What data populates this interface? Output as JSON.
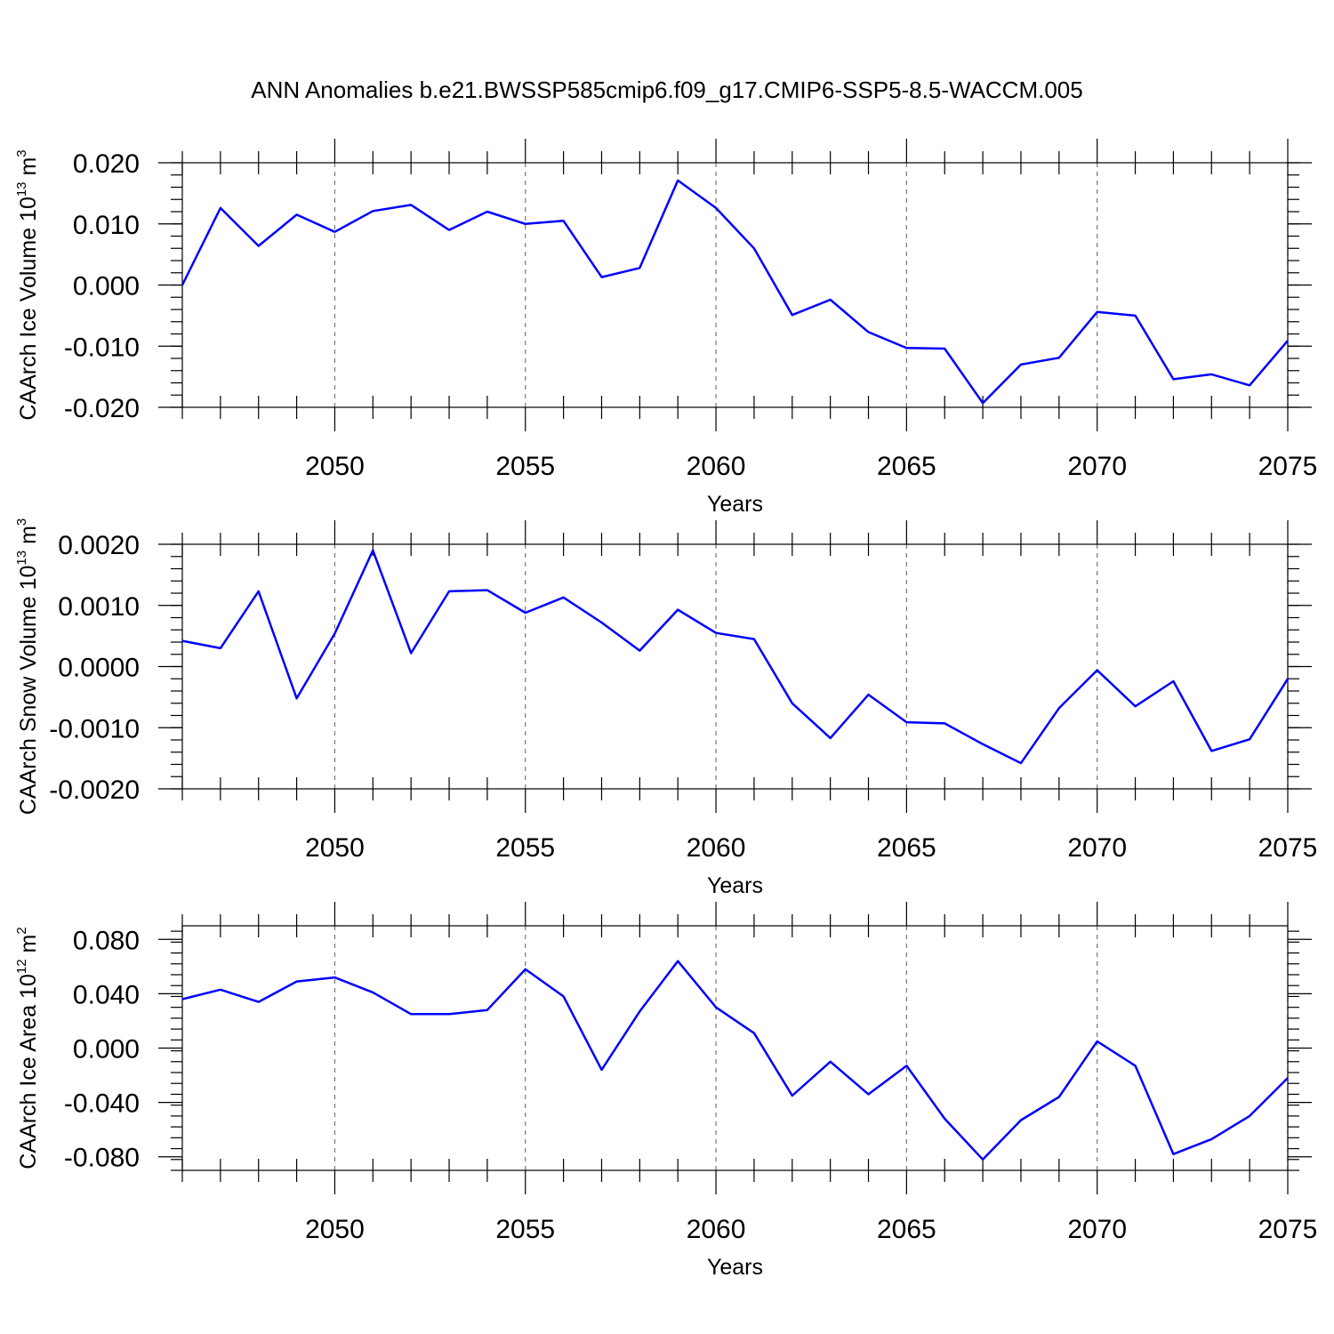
{
  "title": "ANN Anomalies b.e21.BWSSP585cmip6.f09_g17.CMIP6-SSP5-8.5-WACCM.005",
  "chart_data": [
    {
      "type": "line",
      "xlabel": "Years",
      "ylabel_main": "CAArch Ice Volume 10",
      "ylabel_exp": "13",
      "ylabel_tail": " m",
      "ylabel_unit_exp": "3",
      "xlim": [
        2046,
        2075
      ],
      "ylim": [
        -0.02,
        0.02
      ],
      "xticks": [
        2050,
        2055,
        2060,
        2065,
        2070,
        2075
      ],
      "yticks": [
        "-0.020",
        "-0.010",
        "0.000",
        "0.010",
        "0.020"
      ],
      "grid": "vertical dashed at major x ticks",
      "color": "#0000ff",
      "x": [
        2046,
        2047,
        2048,
        2049,
        2050,
        2051,
        2052,
        2053,
        2054,
        2055,
        2056,
        2057,
        2058,
        2059,
        2060,
        2061,
        2062,
        2063,
        2064,
        2065,
        2066,
        2067,
        2068,
        2069,
        2070,
        2071,
        2072,
        2073,
        2074,
        2075
      ],
      "y": [
        0.0,
        0.0126,
        0.0064,
        0.0115,
        0.0087,
        0.0121,
        0.0131,
        0.009,
        0.012,
        0.01,
        0.0105,
        0.0013,
        0.0028,
        0.0171,
        0.0126,
        0.006,
        -0.0049,
        -0.0024,
        -0.0077,
        -0.0103,
        -0.0104,
        -0.0193,
        -0.013,
        -0.0119,
        -0.0044,
        -0.005,
        -0.0154,
        -0.0146,
        -0.0164,
        -0.0091
      ]
    },
    {
      "type": "line",
      "xlabel": "Years",
      "ylabel_main": "CAArch Snow Volume 10",
      "ylabel_exp": "13",
      "ylabel_tail": " m",
      "ylabel_unit_exp": "3",
      "xlim": [
        2046,
        2075
      ],
      "ylim": [
        -0.002,
        0.002
      ],
      "xticks": [
        2050,
        2055,
        2060,
        2065,
        2070,
        2075
      ],
      "yticks": [
        "-0.0020",
        "-0.0010",
        "0.0000",
        "0.0010",
        "0.0020"
      ],
      "grid": "vertical dashed at major x ticks",
      "color": "#0000ff",
      "x": [
        2046,
        2047,
        2048,
        2049,
        2050,
        2051,
        2052,
        2053,
        2054,
        2055,
        2056,
        2057,
        2058,
        2059,
        2060,
        2061,
        2062,
        2063,
        2064,
        2065,
        2066,
        2067,
        2068,
        2069,
        2070,
        2071,
        2072,
        2073,
        2074,
        2075
      ],
      "y": [
        0.00042,
        0.0003,
        0.00123,
        -0.00052,
        0.00054,
        0.0019,
        0.00022,
        0.00123,
        0.00125,
        0.00088,
        0.00113,
        0.00072,
        0.00026,
        0.00093,
        0.00055,
        0.00045,
        -0.0006,
        -0.00117,
        -0.00046,
        -0.00091,
        -0.00093,
        -0.00127,
        -0.00158,
        -0.00068,
        -6e-05,
        -0.00065,
        -0.00024,
        -0.00138,
        -0.00119,
        -0.0002
      ]
    },
    {
      "type": "line",
      "xlabel": "Years",
      "ylabel_main": "CAArch Ice Area 10",
      "ylabel_exp": "12",
      "ylabel_tail": " m",
      "ylabel_unit_exp": "2",
      "xlim": [
        2046,
        2075
      ],
      "ylim": [
        -0.09,
        0.09
      ],
      "xticks": [
        2050,
        2055,
        2060,
        2065,
        2070,
        2075
      ],
      "yticks": [
        "-0.080",
        "-0.040",
        "0.000",
        "0.040",
        "0.080"
      ],
      "grid": "vertical dashed at major x ticks",
      "color": "#0000ff",
      "x": [
        2046,
        2047,
        2048,
        2049,
        2050,
        2051,
        2052,
        2053,
        2054,
        2055,
        2056,
        2057,
        2058,
        2059,
        2060,
        2061,
        2062,
        2063,
        2064,
        2065,
        2066,
        2067,
        2068,
        2069,
        2070,
        2071,
        2072,
        2073,
        2074,
        2075
      ],
      "y": [
        0.036,
        0.043,
        0.034,
        0.049,
        0.052,
        0.041,
        0.025,
        0.025,
        0.028,
        0.058,
        0.038,
        -0.016,
        0.027,
        0.064,
        0.03,
        0.011,
        -0.035,
        -0.01,
        -0.034,
        -0.013,
        -0.052,
        -0.082,
        -0.053,
        -0.036,
        0.005,
        -0.013,
        -0.078,
        -0.067,
        -0.05,
        -0.022
      ]
    }
  ]
}
